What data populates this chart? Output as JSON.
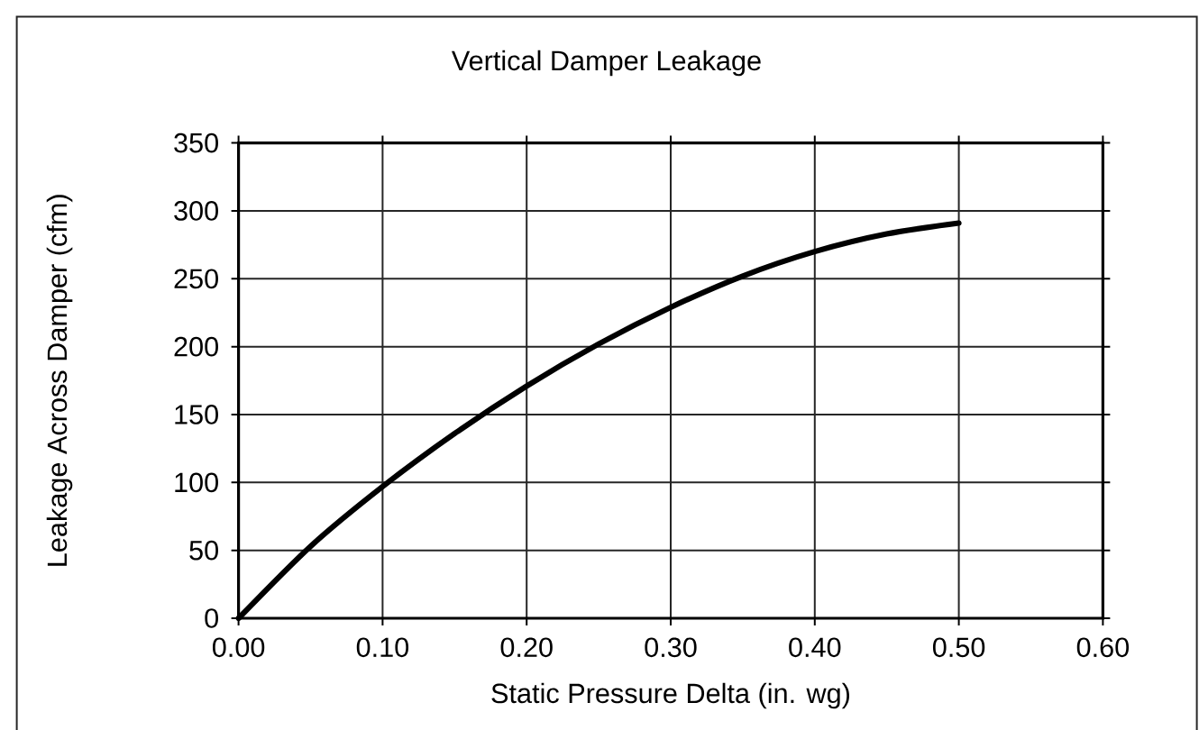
{
  "chart_data": {
    "type": "line",
    "title": "Vertical Damper Leakage",
    "xlabel": "Static Pressure Delta (in. wg)",
    "ylabel": "Leakage Across Damper (cfm)",
    "x": [
      0,
      0.05,
      0.1,
      0.15,
      0.2,
      0.25,
      0.3,
      0.35,
      0.4,
      0.45,
      0.5
    ],
    "values": [
      0,
      53,
      97,
      136,
      171,
      202,
      229,
      252,
      270,
      283,
      291
    ],
    "color": "#000000",
    "line_style": "solid",
    "xlim": [
      0,
      0.6
    ],
    "xticks": [
      {
        "value": 0,
        "label": "0.00"
      },
      {
        "value": 0.1,
        "label": "0.10"
      },
      {
        "value": 0.2,
        "label": "0.20"
      },
      {
        "value": 0.3,
        "label": "0.30"
      },
      {
        "value": 0.4,
        "label": "0.40"
      },
      {
        "value": 0.5,
        "label": "0.50"
      },
      {
        "value": 0.6,
        "label": "0.60"
      }
    ],
    "ylim": [
      0,
      350
    ],
    "yticks": [
      0,
      50,
      100,
      150,
      200,
      250,
      300,
      350
    ],
    "grid": true
  }
}
